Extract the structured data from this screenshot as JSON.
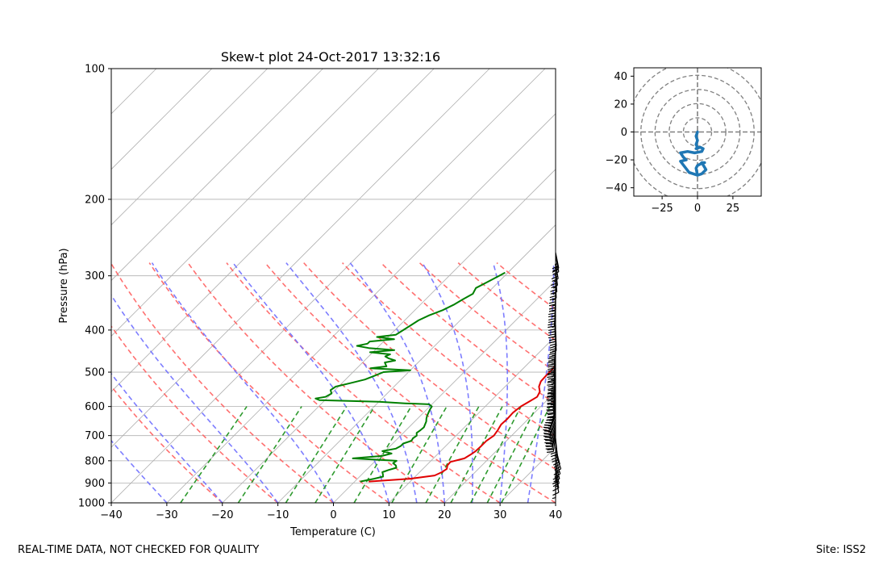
{
  "chart_data": [
    {
      "type": "line",
      "subtype": "skew-t log-p diagram",
      "title": "Skew-t plot 24-Oct-2017 13:32:16",
      "xlabel": "Temperature (C)",
      "ylabel": "Pressure (hPa)",
      "xlim": [
        -40,
        40
      ],
      "ylim": [
        1000,
        100
      ],
      "yscale": "log",
      "x_ticks": [
        -40,
        -30,
        -20,
        -10,
        0,
        10,
        20,
        30,
        40
      ],
      "y_ticks": [
        100,
        200,
        300,
        400,
        500,
        600,
        700,
        800,
        900,
        1000
      ],
      "grid": true,
      "overlays": [
        "isotherms (gray, skewed)",
        "dry adiabats (red dashed)",
        "moist adiabats (blue dashed)",
        "mixing ratio lines (green dashed)"
      ],
      "series": [
        {
          "color": "#e00000",
          "pressure": [
            893,
            880,
            865,
            850,
            835,
            820,
            805,
            790,
            775,
            760,
            740,
            720,
            700,
            680,
            660,
            640,
            620,
            600,
            585,
            570,
            555,
            540,
            525,
            510,
            495,
            480,
            465,
            450,
            435,
            420,
            405,
            390,
            375,
            360,
            345,
            330,
            315,
            300,
            295
          ],
          "temperature": [
            2.5,
            9.5,
            13.3,
            14.0,
            14.3,
            13.8,
            13.7,
            15.6,
            16.0,
            16.3,
            16.4,
            16.4,
            16.8,
            16.5,
            16.1,
            16.2,
            16.1,
            16.4,
            17.0,
            17.6,
            17.2,
            16.1,
            15.5,
            15.4,
            15.4,
            15.3,
            15.2,
            14.9,
            14.6,
            14.3,
            13.5,
            12.0,
            10.8,
            9.5,
            8.2,
            6.9,
            5.6,
            4.5,
            4.0
          ]
        },
        {
          "color": "#008000",
          "pressure": [
            893,
            880,
            870,
            860,
            850,
            840,
            830,
            820,
            810,
            800,
            790,
            780,
            770,
            760,
            750,
            740,
            730,
            720,
            710,
            700,
            690,
            680,
            670,
            660,
            650,
            640,
            630,
            620,
            610,
            600,
            593,
            590,
            585,
            580,
            575,
            570,
            560,
            550,
            540,
            530,
            520,
            510,
            500,
            495,
            490,
            485,
            480,
            475,
            470,
            465,
            460,
            455,
            450,
            445,
            440,
            435,
            430,
            425,
            420,
            415,
            410,
            400,
            390,
            380,
            370,
            360,
            350,
            340,
            330,
            320,
            310,
            300,
            295
          ],
          "temperature": [
            1.0,
            3.0,
            4.2,
            3.8,
            3.3,
            4.0,
            5.0,
            4.5,
            3.6,
            3.8,
            -4.5,
            0.3,
            1.6,
            -0.5,
            1.5,
            1.9,
            1.9,
            2.9,
            2.7,
            2.9,
            2.4,
            2.6,
            2.7,
            2.4,
            2.1,
            1.6,
            1.2,
            0.9,
            0.6,
            0.4,
            -0.5,
            -5.0,
            -10.0,
            -21.0,
            -22.0,
            -20.5,
            -20.0,
            -20.8,
            -20.5,
            -18.5,
            -16.5,
            -15.5,
            -14.5,
            -10.0,
            -17.5,
            -15.0,
            -15.5,
            -16.0,
            -14.5,
            -16.0,
            -17.0,
            -16.5,
            -20.5,
            -16.5,
            -21.5,
            -24.0,
            -22.5,
            -22.5,
            -18.5,
            -22.0,
            -19.0,
            -18.5,
            -18.0,
            -17.5,
            -16.5,
            -15.0,
            -14.0,
            -13.3,
            -12.5,
            -13.0,
            -12.0,
            -11.0,
            -10.5
          ]
        }
      ],
      "wind_barbs": {
        "pressure": [
          893,
          870,
          850,
          830,
          810,
          790,
          770,
          750,
          730,
          710,
          700,
          690,
          680,
          670,
          660,
          650,
          640,
          630,
          620,
          610,
          600,
          590,
          580,
          570,
          560,
          550,
          540,
          530,
          520,
          510,
          500,
          490,
          480,
          470,
          460,
          450,
          440,
          430,
          420,
          410,
          400,
          390,
          380,
          370,
          360,
          350,
          340,
          330,
          320,
          310,
          300,
          290,
          280,
          270,
          265
        ],
        "u_kt": [
          0,
          -2,
          -3,
          -4,
          -5,
          -6,
          -7,
          -6,
          -4,
          -2,
          3,
          5,
          6,
          7,
          8,
          9,
          9,
          10,
          9,
          7,
          5,
          3,
          2,
          3,
          4,
          3,
          3,
          4,
          3,
          2,
          2,
          3,
          2,
          3,
          2,
          2,
          2,
          1,
          0,
          -1,
          -1,
          0,
          1,
          1,
          2,
          1,
          1,
          0,
          0,
          -1,
          -2,
          -3,
          -4,
          -5,
          -5
        ],
        "v_kt": [
          5,
          10,
          15,
          18,
          20,
          20,
          20,
          22,
          25,
          20,
          22,
          24,
          26,
          25,
          25,
          25,
          25,
          25,
          25,
          25,
          25,
          22,
          20,
          22,
          25,
          25,
          25,
          25,
          25,
          25,
          25,
          25,
          25,
          25,
          25,
          25,
          25,
          25,
          25,
          25,
          25,
          25,
          25,
          25,
          25,
          25,
          25,
          25,
          25,
          25,
          25,
          25,
          25,
          25,
          25
        ]
      }
    },
    {
      "type": "line",
      "subtype": "hodograph",
      "xlim": [
        -45,
        45
      ],
      "ylim": [
        -46,
        46
      ],
      "x_ticks": [
        -25,
        0,
        25
      ],
      "y_ticks": [
        -40,
        -20,
        0,
        20,
        40
      ],
      "rings": [
        10,
        20,
        30,
        40,
        50
      ],
      "grid": true,
      "series": [
        {
          "color": "#1f77b4",
          "u": [
            0,
            -1,
            0,
            -1,
            0,
            -1,
            2,
            4,
            3,
            -2,
            -7,
            -12,
            -10,
            -8,
            -12,
            -9,
            -6,
            -3,
            0,
            3,
            6,
            3,
            2,
            3,
            5,
            3,
            2,
            0,
            -1,
            0
          ],
          "v": [
            0,
            -3,
            -6,
            -9,
            -11,
            -12,
            -11,
            -12,
            -14,
            -15,
            -14,
            -15,
            -18,
            -20,
            -21,
            -25,
            -29,
            -30,
            -31,
            -30,
            -27,
            -22,
            -23,
            -22,
            -22,
            -22,
            -23,
            -24,
            -26,
            -31
          ]
        }
      ]
    }
  ],
  "footer": {
    "left_text": "REAL-TIME DATA, NOT CHECKED FOR QUALITY",
    "right_text": "Site: ISS2"
  }
}
